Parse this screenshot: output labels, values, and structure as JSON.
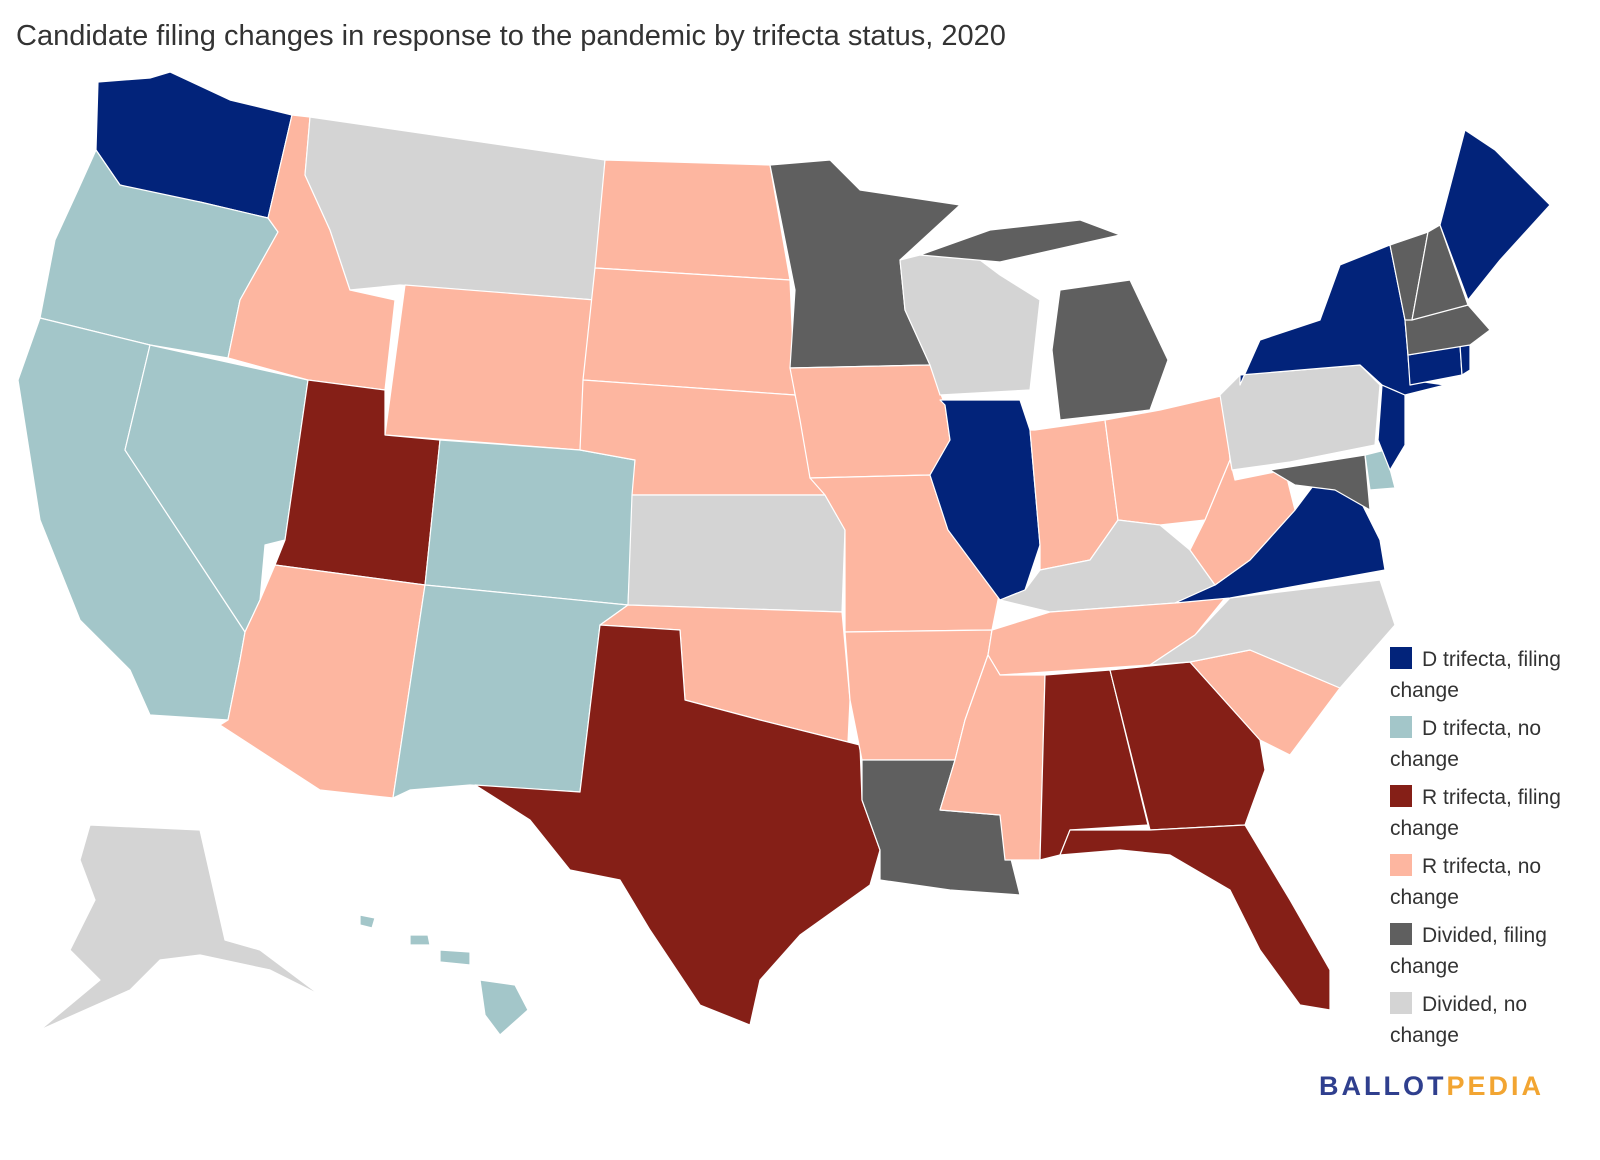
{
  "title": "Candidate filing changes in response to the pandemic by trifecta status, 2020",
  "colors": {
    "d_filing": "#02237A",
    "d_no": "#A3C6C9",
    "r_filing": "#851F17",
    "r_no": "#FDB6A0",
    "div_filing": "#5F5F5F",
    "div_no": "#D4D4D4",
    "logo_blue": "#2F3F8E",
    "logo_orange": "#F2A532"
  },
  "legend": [
    {
      "key": "d_filing",
      "label": "D trifecta, filing change"
    },
    {
      "key": "d_no",
      "label": "D trifecta, no change"
    },
    {
      "key": "r_filing",
      "label": "R trifecta, filing change"
    },
    {
      "key": "r_no",
      "label": "R trifecta, no change"
    },
    {
      "key": "div_filing",
      "label": "Divided, filing change"
    },
    {
      "key": "div_no",
      "label": "Divided, no change"
    }
  ],
  "states": [
    {
      "abbr": "WA",
      "category": "d_filing"
    },
    {
      "abbr": "OR",
      "category": "d_no"
    },
    {
      "abbr": "CA",
      "category": "d_no"
    },
    {
      "abbr": "NV",
      "category": "d_no"
    },
    {
      "abbr": "ID",
      "category": "r_no"
    },
    {
      "abbr": "MT",
      "category": "div_no"
    },
    {
      "abbr": "WY",
      "category": "r_no"
    },
    {
      "abbr": "UT",
      "category": "r_filing"
    },
    {
      "abbr": "AZ",
      "category": "r_no"
    },
    {
      "abbr": "CO",
      "category": "d_no"
    },
    {
      "abbr": "NM",
      "category": "d_no"
    },
    {
      "abbr": "ND",
      "category": "r_no"
    },
    {
      "abbr": "SD",
      "category": "r_no"
    },
    {
      "abbr": "NE",
      "category": "r_no"
    },
    {
      "abbr": "KS",
      "category": "div_no"
    },
    {
      "abbr": "OK",
      "category": "r_no"
    },
    {
      "abbr": "TX",
      "category": "r_filing"
    },
    {
      "abbr": "MN",
      "category": "div_filing"
    },
    {
      "abbr": "IA",
      "category": "r_no"
    },
    {
      "abbr": "MO",
      "category": "r_no"
    },
    {
      "abbr": "AR",
      "category": "r_no"
    },
    {
      "abbr": "LA",
      "category": "div_filing"
    },
    {
      "abbr": "WI",
      "category": "div_no"
    },
    {
      "abbr": "IL",
      "category": "d_filing"
    },
    {
      "abbr": "MI",
      "category": "div_filing"
    },
    {
      "abbr": "IN",
      "category": "r_no"
    },
    {
      "abbr": "OH",
      "category": "r_no"
    },
    {
      "abbr": "KY",
      "category": "div_no"
    },
    {
      "abbr": "TN",
      "category": "r_no"
    },
    {
      "abbr": "MS",
      "category": "r_no"
    },
    {
      "abbr": "AL",
      "category": "r_filing"
    },
    {
      "abbr": "GA",
      "category": "r_filing"
    },
    {
      "abbr": "FL",
      "category": "r_filing"
    },
    {
      "abbr": "SC",
      "category": "r_no"
    },
    {
      "abbr": "NC",
      "category": "div_no"
    },
    {
      "abbr": "VA",
      "category": "d_filing"
    },
    {
      "abbr": "WV",
      "category": "r_no"
    },
    {
      "abbr": "MD",
      "category": "div_filing"
    },
    {
      "abbr": "DE",
      "category": "d_no"
    },
    {
      "abbr": "PA",
      "category": "div_no"
    },
    {
      "abbr": "NJ",
      "category": "d_filing"
    },
    {
      "abbr": "NY",
      "category": "d_filing"
    },
    {
      "abbr": "CT",
      "category": "d_filing"
    },
    {
      "abbr": "RI",
      "category": "d_filing"
    },
    {
      "abbr": "MA",
      "category": "div_filing"
    },
    {
      "abbr": "VT",
      "category": "div_filing"
    },
    {
      "abbr": "NH",
      "category": "div_filing"
    },
    {
      "abbr": "ME",
      "category": "d_filing"
    },
    {
      "abbr": "AK",
      "category": "div_no"
    },
    {
      "abbr": "HI",
      "category": "d_no"
    }
  ],
  "logo": {
    "part1": "BALLOT",
    "part2": "PEDIA"
  }
}
